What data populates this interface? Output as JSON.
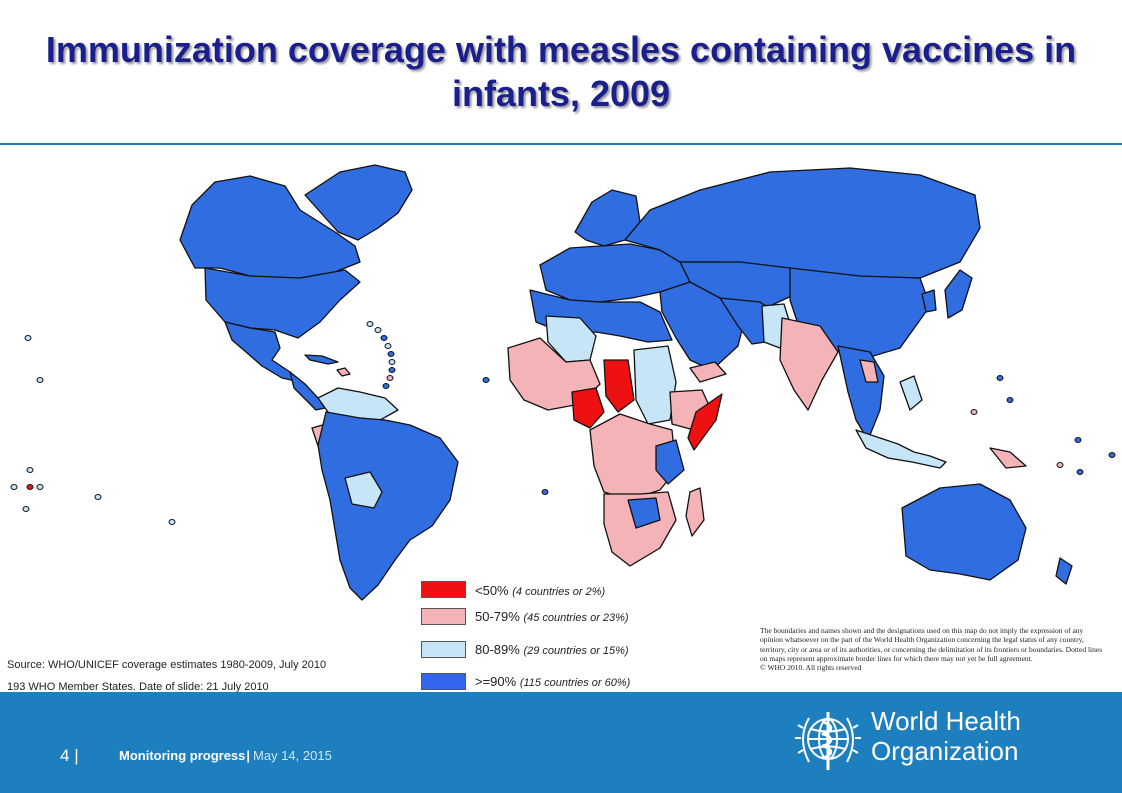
{
  "slide": {
    "title": "Immunization coverage with measles containing vaccines in infants, 2009"
  },
  "map": {
    "type": "choropleth",
    "region": "World",
    "indicator": "Immunization coverage with measles containing vaccines in infants",
    "year": "2009",
    "colors": {
      "below_50": "#ee1111",
      "50_79": "#f4b3b6",
      "80_89": "#c6e6f7",
      "90_plus": "#2f6de0",
      "ocean": "#ffffff",
      "border": "#111111"
    }
  },
  "legend": [
    {
      "range": "<50%",
      "note": "(4 countries or 2%)",
      "color": "#ee1111"
    },
    {
      "range": "50-79%",
      "note": "(45 countries or 23%)",
      "color": "#f4b3b6"
    },
    {
      "range": "80-89%",
      "note": "(29 countries or 15%)",
      "color": "#c6e6f7"
    },
    {
      "range": ">=90%",
      "note": "(115 countries or 60%)",
      "color": "#3366ee"
    }
  ],
  "source": {
    "line1": "Source: WHO/UNICEF coverage estimates 1980-2009, July 2010",
    "line2": "193 WHO Member States. Date of slide: 21 July 2010"
  },
  "disclaimer": "The boundaries and names shown and the designations used on this map do not imply the expression of any opinion whatsoever on the part of the World Health Organization concerning the legal status of any country, territory, city or area or of its authorities, or concerning the delimitation of its frontiers or boundaries. Dotted lines on maps represent approximate border lines for which there may not yet be full agreement.",
  "copyright": "© WHO 2010. All rights reserved",
  "footer": {
    "page": "4",
    "separator": "|",
    "section": "Monitoring progress",
    "date": "May 14, 2015",
    "org_line1": "World Health",
    "org_line2": "Organization"
  }
}
